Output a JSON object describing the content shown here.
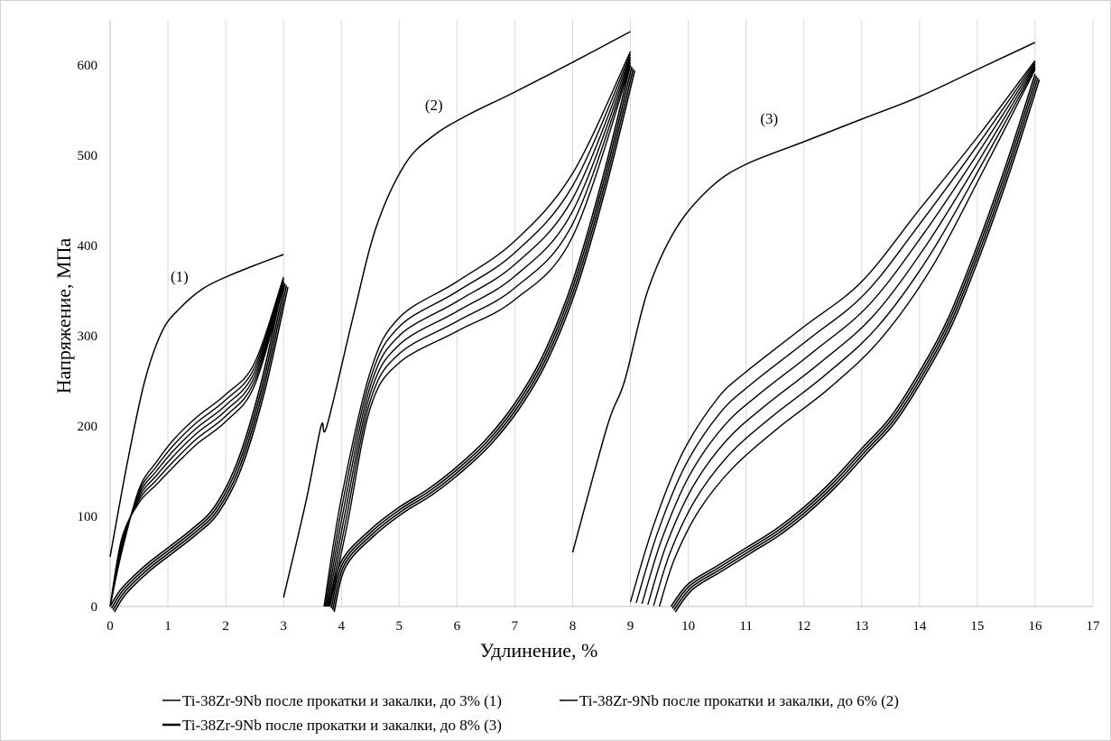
{
  "chart_data": {
    "type": "line",
    "xlabel": "Удлинение, %",
    "ylabel": "Напряжение, МПа",
    "xlim": [
      0,
      17
    ],
    "ylim": [
      0,
      650
    ],
    "xticks": [
      "0",
      "1",
      "2",
      "3",
      "4",
      "5",
      "6",
      "7",
      "8",
      "9",
      "10",
      "11",
      "12",
      "13",
      "14",
      "15",
      "16",
      "17"
    ],
    "yticks": [
      "0",
      "100",
      "200",
      "300",
      "400",
      "500",
      "600"
    ],
    "grid": "vertical",
    "legend_position": "bottom",
    "annotations": [
      {
        "text": "(1)",
        "x": 1.2,
        "y": 360
      },
      {
        "text": "(2)",
        "x": 5.6,
        "y": 550
      },
      {
        "text": "(3)",
        "x": 11.4,
        "y": 535
      }
    ],
    "series": [
      {
        "name": "Ti-38Zr-9Nb после прокатки и закалки, до 3% (1)",
        "color": "#000000",
        "first_load": [
          [
            0,
            55
          ],
          [
            0.3,
            160
          ],
          [
            0.6,
            250
          ],
          [
            0.9,
            305
          ],
          [
            1.2,
            330
          ],
          [
            1.6,
            352
          ],
          [
            2.0,
            365
          ],
          [
            2.5,
            378
          ],
          [
            3.0,
            390
          ]
        ],
        "reload_upper": [
          [
            0,
            0
          ],
          [
            0.2,
            60
          ],
          [
            0.5,
            130
          ],
          [
            0.8,
            160
          ],
          [
            1.1,
            185
          ],
          [
            1.5,
            210
          ],
          [
            2.0,
            235
          ],
          [
            2.5,
            270
          ],
          [
            3.0,
            365
          ]
        ],
        "reload_lower": [
          [
            0,
            0
          ],
          [
            0.2,
            75
          ],
          [
            0.5,
            115
          ],
          [
            0.8,
            135
          ],
          [
            1.1,
            155
          ],
          [
            1.5,
            180
          ],
          [
            2.0,
            205
          ],
          [
            2.5,
            245
          ],
          [
            3.0,
            355
          ]
        ],
        "unload": [
          [
            3.0,
            360
          ],
          [
            2.6,
            245
          ],
          [
            2.2,
            160
          ],
          [
            1.8,
            110
          ],
          [
            1.4,
            85
          ],
          [
            1.0,
            65
          ],
          [
            0.6,
            45
          ],
          [
            0.2,
            20
          ],
          [
            0,
            0
          ]
        ]
      },
      {
        "name": "Ti-38Zr-9Nb после прокатки и закалки, до 6% (2)",
        "color": "#000000",
        "first_load": [
          [
            3.0,
            10
          ],
          [
            3.4,
            120
          ],
          [
            3.65,
            200
          ],
          [
            3.75,
            200
          ],
          [
            4.2,
            320
          ],
          [
            4.6,
            420
          ],
          [
            5.1,
            490
          ],
          [
            5.6,
            522
          ],
          [
            6.2,
            545
          ],
          [
            7.0,
            570
          ],
          [
            8.0,
            603
          ],
          [
            9.0,
            637
          ]
        ],
        "reload_upper": [
          [
            3.7,
            0
          ],
          [
            4.0,
            120
          ],
          [
            4.5,
            260
          ],
          [
            5.0,
            320
          ],
          [
            6.0,
            360
          ],
          [
            7.0,
            405
          ],
          [
            8.0,
            480
          ],
          [
            9.0,
            615
          ]
        ],
        "reload_lower": [
          [
            3.8,
            0
          ],
          [
            4.1,
            90
          ],
          [
            4.5,
            220
          ],
          [
            5.0,
            270
          ],
          [
            6.0,
            305
          ],
          [
            7.0,
            340
          ],
          [
            8.0,
            410
          ],
          [
            9.0,
            600
          ]
        ],
        "unload": [
          [
            9.0,
            600
          ],
          [
            8.5,
            470
          ],
          [
            8.0,
            360
          ],
          [
            7.5,
            280
          ],
          [
            7.0,
            225
          ],
          [
            6.5,
            185
          ],
          [
            6.0,
            155
          ],
          [
            5.5,
            130
          ],
          [
            5.0,
            110
          ],
          [
            4.5,
            85
          ],
          [
            4.0,
            50
          ],
          [
            3.8,
            0
          ]
        ]
      },
      {
        "name": "Ti-38Zr-9Nb после прокатки и закалки, до 8% (3)",
        "color": "#000000",
        "first_load": [
          [
            8.0,
            60
          ],
          [
            8.6,
            200
          ],
          [
            8.9,
            250
          ],
          [
            9.3,
            350
          ],
          [
            9.8,
            420
          ],
          [
            10.4,
            465
          ],
          [
            11.0,
            490
          ],
          [
            12.0,
            515
          ],
          [
            13.0,
            540
          ],
          [
            14.0,
            565
          ],
          [
            15.0,
            595
          ],
          [
            16.0,
            625
          ]
        ],
        "reload_upper": [
          [
            9.0,
            5
          ],
          [
            9.4,
            90
          ],
          [
            9.9,
            170
          ],
          [
            10.5,
            230
          ],
          [
            11.0,
            260
          ],
          [
            12.0,
            310
          ],
          [
            13.0,
            360
          ],
          [
            14.0,
            440
          ],
          [
            15.0,
            520
          ],
          [
            16.0,
            605
          ]
        ],
        "reload_lower": [
          [
            9.5,
            0
          ],
          [
            9.8,
            60
          ],
          [
            10.3,
            120
          ],
          [
            11.0,
            170
          ],
          [
            12.0,
            220
          ],
          [
            13.0,
            270
          ],
          [
            14.0,
            350
          ],
          [
            15.0,
            470
          ],
          [
            16.0,
            595
          ]
        ],
        "unload": [
          [
            16.0,
            590
          ],
          [
            15.5,
            490
          ],
          [
            15.0,
            400
          ],
          [
            14.5,
            320
          ],
          [
            14.0,
            260
          ],
          [
            13.5,
            210
          ],
          [
            13.0,
            175
          ],
          [
            12.5,
            140
          ],
          [
            12.0,
            110
          ],
          [
            11.5,
            85
          ],
          [
            11.0,
            65
          ],
          [
            10.5,
            45
          ],
          [
            10.0,
            25
          ],
          [
            9.7,
            0
          ]
        ]
      }
    ]
  }
}
